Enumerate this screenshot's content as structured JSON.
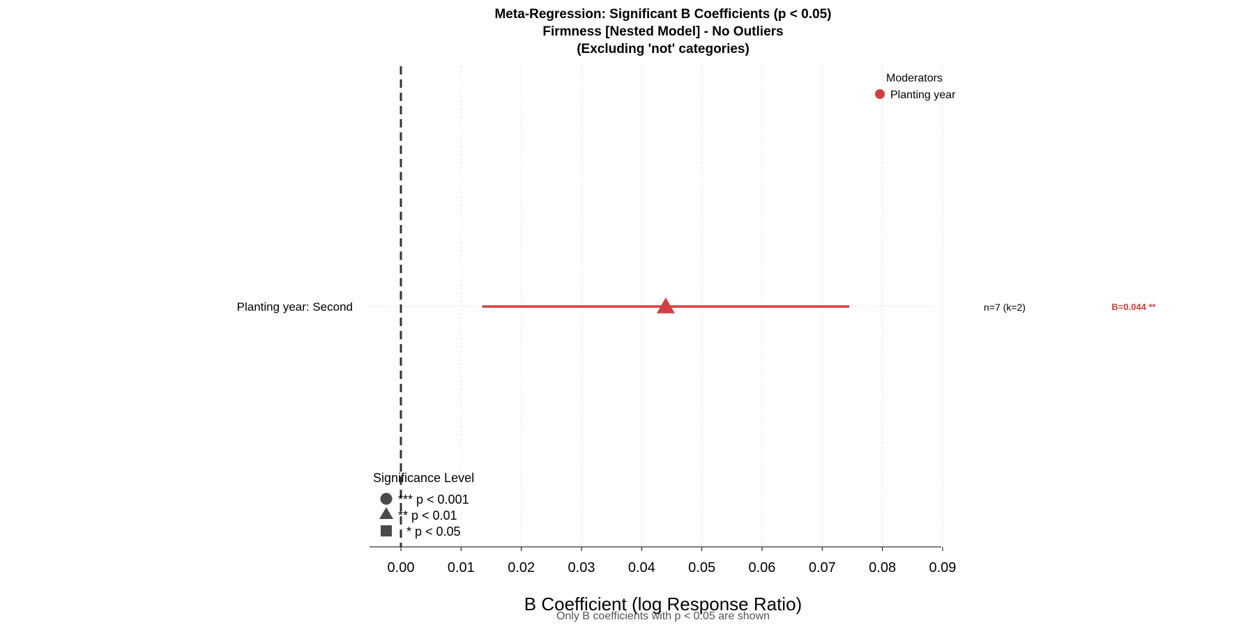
{
  "chart_data": {
    "type": "scatter",
    "subtype": "forest-plot",
    "title_lines": [
      "Meta-Regression: Significant B Coefficients (p < 0.05)",
      "Firmness [Nested Model] - No Outliers",
      "(Excluding 'not' categories)"
    ],
    "xlabel": "B Coefficient (log Response Ratio)",
    "ylabel": "",
    "caption": "Only B coefficients with p < 0.05 are shown",
    "xlim": [
      -0.0052,
      0.09
    ],
    "x_ticks": [
      0.0,
      0.01,
      0.02,
      0.03,
      0.04,
      0.05,
      0.06,
      0.07,
      0.08,
      0.09
    ],
    "x_tick_labels": [
      "0.00",
      "0.01",
      "0.02",
      "0.03",
      "0.04",
      "0.05",
      "0.06",
      "0.07",
      "0.08",
      "0.09"
    ],
    "reference_line": {
      "x": 0,
      "style": "dashed"
    },
    "grid": true,
    "rows": [
      {
        "label": "Planting year: Second",
        "moderator": "Planting year",
        "estimate": 0.044,
        "ci_lower": 0.0135,
        "ci_upper": 0.0745,
        "significance": "**",
        "n_label": "n=7 (k=2)",
        "b_label": "B=0.044 **"
      }
    ],
    "legend": {
      "title": "Moderators",
      "position": "top-right",
      "items": [
        {
          "name": "Planting year",
          "color": "#d33f3f",
          "shape": "circle"
        }
      ]
    },
    "significance_legend": {
      "title": "Significance Level",
      "position": "bottom-left",
      "items": [
        {
          "shape": "circle",
          "label": "*** p < 0.001"
        },
        {
          "shape": "triangle",
          "label": "** p < 0.01"
        },
        {
          "shape": "square",
          "label": "* p < 0.05"
        }
      ],
      "marker_color": "#4a4a4a"
    },
    "colors": {
      "series": "#d33f3f",
      "reference_line": "#333333",
      "grid": "#e3e3e3",
      "axis": "#000000"
    }
  }
}
